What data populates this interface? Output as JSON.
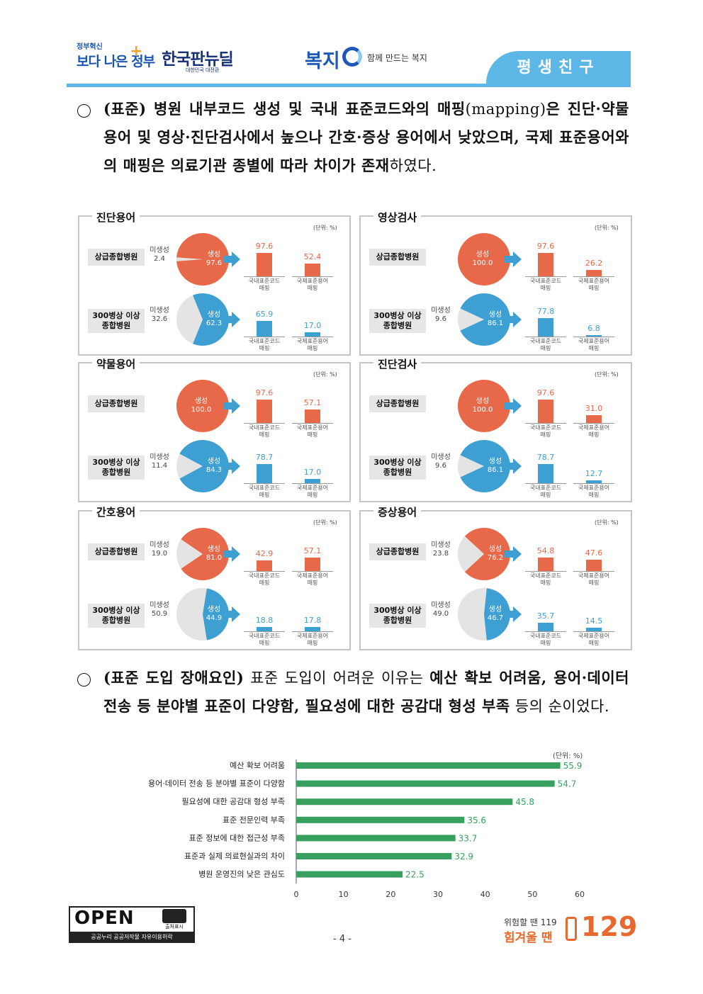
{
  "header": {
    "logo1_small": "정부혁신",
    "logo1_big": "보다 나은 정부",
    "logo2_big": "한국판뉴딜",
    "logo2_small": "대한민국 대전환",
    "bokji_logo": "복지",
    "bokji_sub": "함께 만드는 복지",
    "tag": "평생친구"
  },
  "para1": {
    "bold1": "(표준) 병원 내부코드 생성 및 국내 표준코드와의 매핑",
    "normal1": "(mapping)",
    "bold2": "은 진단·약물 용어 및 영상·진단검사에서 높으나 간호·증상 용어에서 낮았으며, 국제 표준용어와의 매핑은 의료기관 종별에 따라 차이가 존재",
    "normal2": "하였다."
  },
  "panels_common": {
    "unit": "(단위: %)",
    "hosp_upper": "상급종합병원",
    "hosp_300_line1": "300병상 이상",
    "hosp_300_line2": "종합병원",
    "gen_label": "생성",
    "nongen_label": "미생성",
    "bar_dom_line1": "국내표준코드",
    "bar_intl_line1": "국제표준용어",
    "bar_line2": "매핑"
  },
  "panels": [
    {
      "title": "진단용어",
      "rows": [
        {
          "gen": "97.6",
          "nongen": "2.4",
          "dom": "97.6",
          "intl": "52.4"
        },
        {
          "gen": "62.3",
          "nongen": "32.6",
          "dom": "65.9",
          "intl": "17.0"
        }
      ]
    },
    {
      "title": "영상검사",
      "rows": [
        {
          "gen": "100.0",
          "nongen": "",
          "dom": "97.6",
          "intl": "26.2"
        },
        {
          "gen": "86.1",
          "nongen": "9.6",
          "dom": "77.8",
          "intl": "6.8"
        }
      ]
    },
    {
      "title": "약물용어",
      "rows": [
        {
          "gen": "100.0",
          "nongen": "",
          "dom": "97.6",
          "intl": "57.1"
        },
        {
          "gen": "84.3",
          "nongen": "11.4",
          "dom": "78.7",
          "intl": "17.0"
        }
      ]
    },
    {
      "title": "진단검사",
      "rows": [
        {
          "gen": "100.0",
          "nongen": "",
          "dom": "97.6",
          "intl": "31.0"
        },
        {
          "gen": "86.1",
          "nongen": "9.6",
          "dom": "78.7",
          "intl": "12.7"
        }
      ]
    },
    {
      "title": "간호용어",
      "rows": [
        {
          "gen": "81.0",
          "nongen": "19.0",
          "dom": "42.9",
          "intl": "57.1"
        },
        {
          "gen": "44.9",
          "nongen": "50.9",
          "dom": "18.8",
          "intl": "17.8"
        }
      ]
    },
    {
      "title": "증상용어",
      "rows": [
        {
          "gen": "76.2",
          "nongen": "23.8",
          "dom": "54.8",
          "intl": "47.6"
        },
        {
          "gen": "46.7",
          "nongen": "49.0",
          "dom": "35.7",
          "intl": "14.5"
        }
      ]
    }
  ],
  "para2": {
    "bold1": "(표준 도입 장애요인)",
    "normal1": " 표준 도입이 어려운 이유는 ",
    "bold2": "예산 확보 어려움, 용어·데이터 전송 등 분야별 표준이 다양함, 필요성에 대한 공감대 형성 부족",
    "normal2": " 등의 순이었다."
  },
  "chart_data": {
    "type": "bar",
    "orientation": "horizontal",
    "unit_label": "(단위: %)",
    "categories": [
      "예산 확보 어려움",
      "용어·데이터 전송 등 분야별 표준이 다양함",
      "필요성에 대한 공감대 형성 부족",
      "표준 전문인력 부족",
      "표준 정보에 대한 접근성 부족",
      "표준과 실제 의료현실과의 차이",
      "병원 운영진의 낮은 관심도"
    ],
    "values": [
      55.9,
      54.7,
      45.8,
      35.6,
      33.7,
      32.9,
      22.5
    ],
    "xlim": [
      0,
      60
    ],
    "xticks": [
      "0",
      "10",
      "20",
      "30",
      "40",
      "50",
      "60"
    ],
    "bar_color": "#37a05e",
    "grid": false
  },
  "footer": {
    "open_text": "OPEN",
    "open_badge": "출처표시",
    "open_sub": "공공누리  공공저작물 자유이용허락",
    "page": "- 4 -",
    "hotline_small": "위험할 땐 119",
    "hotline_big": "힘겨울 땐",
    "hotline_num": "129"
  },
  "colors": {
    "upper_pie": "#e8694a",
    "upper_bar": "#e8694a",
    "lower_pie": "#3e9fd2",
    "lower_bar": "#3e9fd2",
    "nongen_slice": "#e4e4e4",
    "arrow": "#3e9fd2",
    "header_blue": "#5cb6e6"
  }
}
